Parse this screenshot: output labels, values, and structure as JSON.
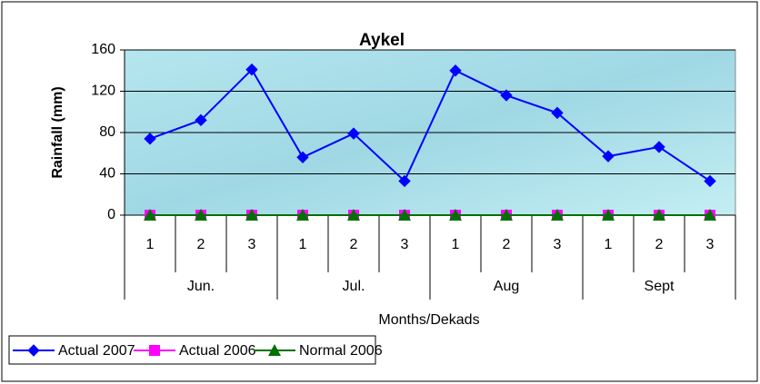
{
  "chart_data": {
    "type": "line",
    "title": "Aykel",
    "y_label": "Rainfall (mm)",
    "x_label": "Months/Dekads",
    "categories": [
      "1",
      "2",
      "3",
      "1",
      "2",
      "3",
      "1",
      "2",
      "3",
      "1",
      "2",
      "3"
    ],
    "groups": [
      "Jun.",
      "Jul.",
      "Aug",
      "Sept"
    ],
    "series": [
      {
        "name": "Actual 2007",
        "color": "#0000ff",
        "marker": "diamond",
        "values": [
          74,
          92,
          141,
          56,
          79,
          33,
          140,
          116,
          99,
          57,
          66,
          33
        ]
      },
      {
        "name": "Actual 2006",
        "color": "#ff00ff",
        "marker": "square",
        "values": [
          0,
          0,
          0,
          0,
          0,
          0,
          0,
          0,
          0,
          0,
          0,
          0
        ]
      },
      {
        "name": "Normal 2006",
        "color": "#007000",
        "marker": "triangle",
        "values": [
          0,
          0,
          0,
          0,
          0,
          0,
          0,
          0,
          0,
          0,
          0,
          0
        ]
      }
    ],
    "ylim": [
      0,
      160
    ],
    "yticks": [
      0,
      40,
      80,
      120,
      160
    ],
    "grid": true,
    "legend": "bottom-left"
  }
}
